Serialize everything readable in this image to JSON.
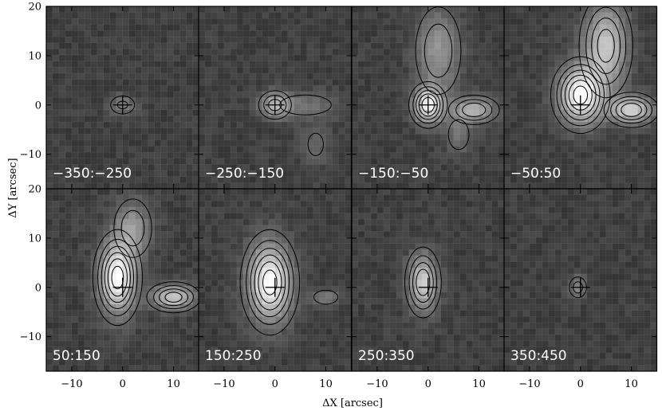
{
  "chart_data": {
    "type": "heatmap",
    "title": "",
    "xlabel": "ΔX [arcsec]",
    "ylabel": "ΔY [arcsec]",
    "xlim": [
      -15,
      15
    ],
    "ylim": [
      -17,
      20
    ],
    "x_ticks": [
      -10,
      0,
      10
    ],
    "y_ticks": [
      -10,
      0,
      10,
      20
    ],
    "y_tick_labels": [
      "−10",
      "0",
      "10",
      "20"
    ],
    "x_tick_labels": [
      "−10",
      "0",
      "10"
    ],
    "grid": true,
    "colormap": "grayscale",
    "layout": "2 rows x 4 columns",
    "marker": "cross at (0,0)",
    "panels": [
      {
        "label": "−350:−250",
        "sources": [
          {
            "x": 0,
            "y": 0,
            "sx": 1.8,
            "sy": 1.4,
            "amp": 0.35
          }
        ]
      },
      {
        "label": "−250:−150",
        "sources": [
          {
            "x": 0,
            "y": 0,
            "sx": 2.0,
            "sy": 1.8,
            "amp": 0.55
          },
          {
            "x": 6,
            "y": 0,
            "sx": 5,
            "sy": 2,
            "amp": 0.25
          },
          {
            "x": 8,
            "y": -8,
            "sx": 2,
            "sy": 3,
            "amp": 0.2
          }
        ]
      },
      {
        "label": "−150:−50",
        "sources": [
          {
            "x": 0,
            "y": 0,
            "sx": 2.0,
            "sy": 2.5,
            "amp": 0.9
          },
          {
            "x": 9,
            "y": -1,
            "sx": 3,
            "sy": 1.8,
            "amp": 0.6
          },
          {
            "x": 2,
            "y": 11,
            "sx": 3,
            "sy": 6,
            "amp": 0.45
          },
          {
            "x": 6,
            "y": -6,
            "sx": 2,
            "sy": 3,
            "amp": 0.25
          }
        ]
      },
      {
        "label": "−50:50",
        "sources": [
          {
            "x": 0,
            "y": 2,
            "sx": 3,
            "sy": 4,
            "amp": 1.0
          },
          {
            "x": 10,
            "y": -1,
            "sx": 3,
            "sy": 2,
            "amp": 0.75
          },
          {
            "x": 5,
            "y": 12,
            "sx": 3,
            "sy": 6,
            "amp": 0.7
          }
        ]
      },
      {
        "label": "50:150",
        "sources": [
          {
            "x": -1,
            "y": 2,
            "sx": 2.5,
            "sy": 5,
            "amp": 1.0
          },
          {
            "x": 10,
            "y": -2,
            "sx": 3,
            "sy": 1.8,
            "amp": 0.7
          },
          {
            "x": 2,
            "y": 12,
            "sx": 2.5,
            "sy": 4,
            "amp": 0.45
          }
        ]
      },
      {
        "label": "150:250",
        "sources": [
          {
            "x": -1,
            "y": 1,
            "sx": 3,
            "sy": 5.5,
            "amp": 1.0
          },
          {
            "x": 10,
            "y": -2,
            "sx": 2,
            "sy": 1.2,
            "amp": 0.3
          }
        ]
      },
      {
        "label": "250:350",
        "sources": [
          {
            "x": -1,
            "y": 1,
            "sx": 2,
            "sy": 4,
            "amp": 0.75
          }
        ]
      },
      {
        "label": "350:450",
        "sources": [
          {
            "x": -0.5,
            "y": 0,
            "sx": 1.2,
            "sy": 1.5,
            "amp": 0.4
          }
        ]
      }
    ]
  }
}
